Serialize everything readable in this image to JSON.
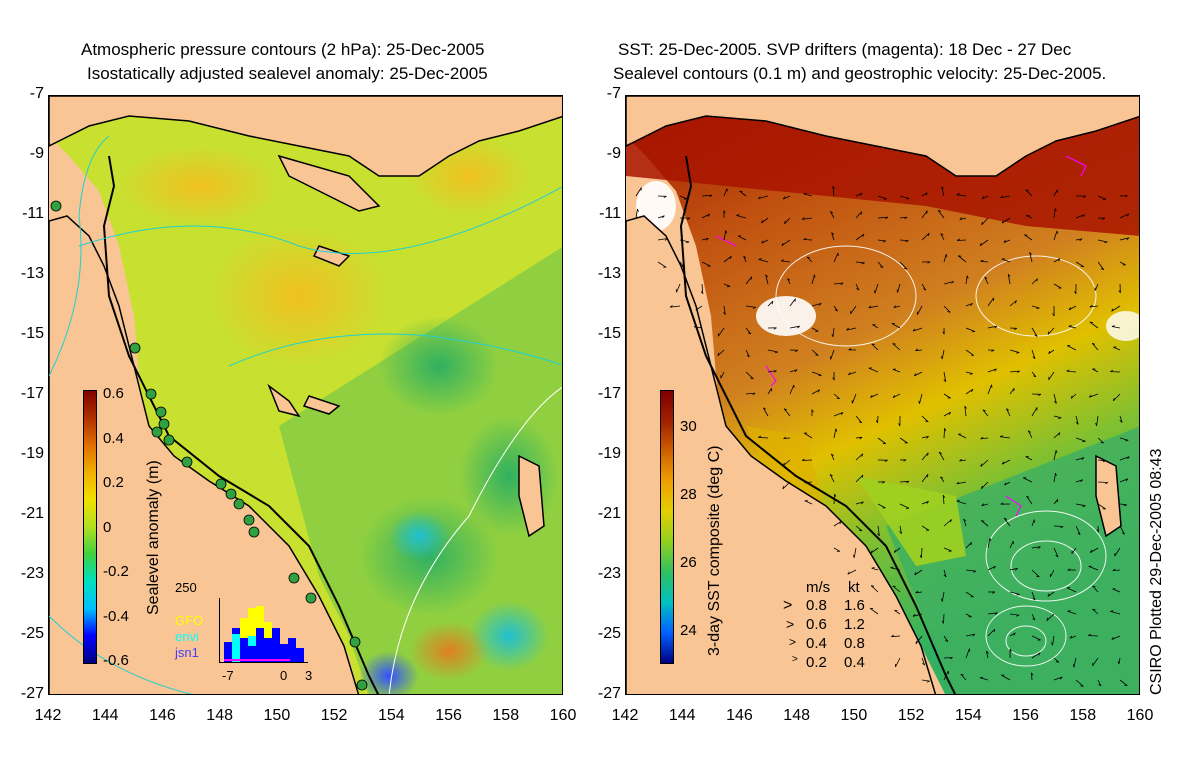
{
  "left_panel": {
    "title_line1": "Atmospheric pressure contours (2 hPa): 25-Dec-2005",
    "title_line2": "Isostatically adjusted sealevel anomaly: 25-Dec-2005",
    "colorbar_label": "Sealevel anomaly (m)",
    "colorbar_ticks": [
      "0.6",
      "0.4",
      "0.2",
      "0",
      "-0.2",
      "-0.4",
      "-0.6"
    ],
    "histogram": {
      "ymax_label": "250",
      "x_ticks": [
        "-7",
        "0",
        "3"
      ],
      "legend": [
        {
          "name": "GFO",
          "color": "#ffff00"
        },
        {
          "name": "envi",
          "color": "#00ffff"
        },
        {
          "name": "jsn1",
          "color": "#0000ff"
        }
      ]
    }
  },
  "right_panel": {
    "title_line1": "SST: 25-Dec-2005. SVP drifters (magenta): 18 Dec - 27 Dec",
    "title_line2": "Sealevel contours (0.1 m) and geostrophic velocity: 25-Dec-2005.",
    "colorbar_label": "3-day SST composite (deg C)",
    "colorbar_ticks": [
      "30",
      "28",
      "26",
      "24"
    ],
    "velocity_legend": {
      "header_ms": "m/s",
      "header_kt": "kt",
      "rows": [
        {
          "ms": "0.8",
          "kt": "1.6"
        },
        {
          "ms": "0.6",
          "kt": "1.2"
        },
        {
          "ms": "0.4",
          "kt": "0.8"
        },
        {
          "ms": "0.2",
          "kt": "0.4"
        }
      ]
    }
  },
  "credit": "CSIRO Plotted 29-Dec-2005 08:43",
  "axes": {
    "y_ticks": [
      "-7",
      "-9",
      "-11",
      "-13",
      "-15",
      "-17",
      "-19",
      "-21",
      "-23",
      "-25",
      "-27"
    ],
    "x_ticks": [
      "142",
      "144",
      "146",
      "148",
      "150",
      "152",
      "154",
      "156",
      "158",
      "160"
    ]
  },
  "colors": {
    "land": "#f9c594",
    "sla_ramp": [
      "#000080",
      "#0000ff",
      "#00c0ff",
      "#00e0c0",
      "#40d040",
      "#b0e020",
      "#f0e000",
      "#f0b000",
      "#e07000",
      "#b03000",
      "#800000"
    ],
    "sst_ramp": [
      "#000080",
      "#0060ff",
      "#00c0c0",
      "#30c060",
      "#90d020",
      "#e0d000",
      "#f0a000",
      "#d06000",
      "#a02000",
      "#800000"
    ]
  },
  "chart_data": [
    {
      "type": "heatmap",
      "title": "Atmospheric pressure contours (2 hPa): 25-Dec-2005 / Isostatically adjusted sealevel anomaly: 25-Dec-2005",
      "xlabel": "",
      "ylabel": "",
      "xlim": [
        142,
        160
      ],
      "ylim": [
        -27,
        -7
      ],
      "colorbar": {
        "label": "Sealevel anomaly (m)",
        "range": [
          -0.6,
          0.6
        ]
      },
      "histogram": {
        "xlim": [
          -7,
          3
        ],
        "ymax": 250,
        "series": [
          "GFO",
          "envi",
          "jsn1"
        ]
      }
    },
    {
      "type": "heatmap",
      "title": "SST: 25-Dec-2005. SVP drifters (magenta): 18 Dec - 27 Dec / Sealevel contours (0.1 m) and geostrophic velocity: 25-Dec-2005.",
      "xlabel": "",
      "ylabel": "",
      "xlim": [
        142,
        160
      ],
      "ylim": [
        -27,
        -7
      ],
      "colorbar": {
        "label": "3-day SST composite (deg C)",
        "range": [
          23.2,
          31
        ]
      },
      "velocity_scale": [
        {
          "ms": 0.8,
          "kt": 1.6
        },
        {
          "ms": 0.6,
          "kt": 1.2
        },
        {
          "ms": 0.4,
          "kt": 0.8
        },
        {
          "ms": 0.2,
          "kt": 0.4
        }
      ]
    }
  ]
}
